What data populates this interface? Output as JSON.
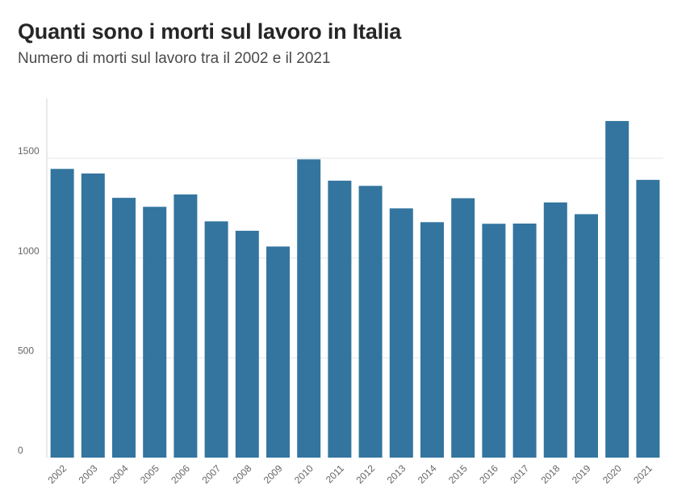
{
  "header": {
    "title": "Quanti sono i morti sul lavoro in Italia",
    "subtitle": "Numero di morti sul lavoro tra il 2002 e il 2021"
  },
  "colors": {
    "bar": "#33759f",
    "grid": "#e3e6ea",
    "axis": "#cfd3d8"
  },
  "chart_data": {
    "type": "bar",
    "title": "Quanti sono i morti sul lavoro in Italia",
    "subtitle": "Numero di morti sul lavoro tra il 2002 e il 2021",
    "xlabel": "",
    "ylabel": "",
    "categories": [
      "2002",
      "2003",
      "2004",
      "2005",
      "2006",
      "2007",
      "2008",
      "2009",
      "2010",
      "2011",
      "2012",
      "2013",
      "2014",
      "2015",
      "2016",
      "2017",
      "2018",
      "2019",
      "2020",
      "2021"
    ],
    "values": [
      1447,
      1424,
      1302,
      1257,
      1319,
      1184,
      1137,
      1058,
      1495,
      1388,
      1362,
      1249,
      1180,
      1300,
      1172,
      1173,
      1279,
      1220,
      1687,
      1392
    ],
    "yticks": [
      0,
      500,
      1000,
      1500
    ],
    "ylim": [
      0,
      1800
    ],
    "grid": true,
    "legend": "none"
  }
}
